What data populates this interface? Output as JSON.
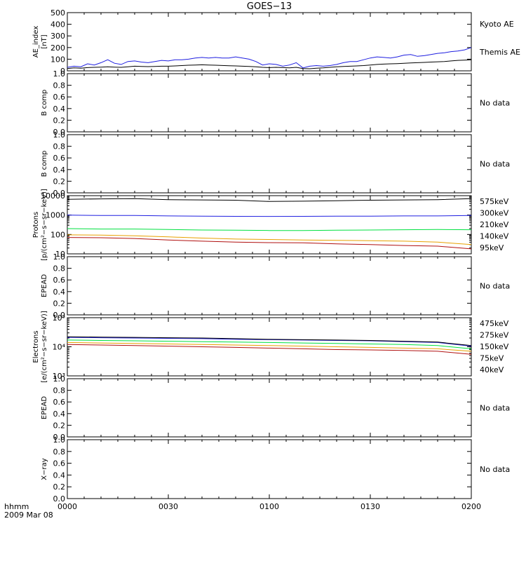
{
  "title": "GOES−13",
  "x_axis": {
    "ticks": [
      "0000",
      "0030",
      "0100",
      "0130",
      "0200"
    ],
    "label_line1": "hhmm",
    "label_line2": "2009 Mar 08"
  },
  "colors": {
    "black": "#000000",
    "blue": "#1f1fe0",
    "red": "#b01010",
    "orange": "#e8a000",
    "green": "#00e040"
  },
  "chart_data": [
    {
      "type": "line",
      "id": "ae",
      "ylabel": [
        "AE_index",
        "[nT]"
      ],
      "ylim": [
        0,
        500
      ],
      "scale": "linear",
      "yticks": [
        "0",
        "100",
        "200",
        "300",
        "400",
        "500"
      ],
      "x": [
        0,
        2,
        4,
        6,
        8,
        10,
        12,
        14,
        16,
        18,
        20,
        22,
        24,
        26,
        28,
        30,
        32,
        34,
        36,
        38,
        40,
        42,
        44,
        46,
        48,
        50,
        52,
        54,
        56,
        58,
        60,
        62,
        64,
        66,
        68,
        70,
        72,
        74,
        76,
        78,
        80,
        82,
        84,
        86,
        88,
        90,
        92,
        94,
        96,
        98,
        100,
        102,
        104,
        106,
        108,
        110,
        112,
        114,
        116,
        118,
        120
      ],
      "series": [
        {
          "name": "Kyoto AE",
          "color": "blue",
          "values": [
            30,
            40,
            35,
            60,
            50,
            70,
            95,
            65,
            55,
            80,
            85,
            75,
            70,
            80,
            90,
            85,
            95,
            95,
            100,
            110,
            115,
            110,
            115,
            110,
            110,
            120,
            110,
            100,
            80,
            50,
            60,
            55,
            40,
            50,
            70,
            25,
            40,
            45,
            40,
            45,
            55,
            70,
            80,
            80,
            95,
            110,
            120,
            115,
            110,
            120,
            135,
            140,
            125,
            130,
            140,
            150,
            155,
            165,
            170,
            180,
            200
          ]
        },
        {
          "name": "Themis AE",
          "color": "black",
          "values": [
            20,
            25,
            22,
            28,
            30,
            32,
            35,
            32,
            30,
            35,
            40,
            38,
            36,
            38,
            40,
            40,
            42,
            45,
            48,
            50,
            52,
            50,
            48,
            46,
            44,
            42,
            40,
            38,
            35,
            30,
            28,
            30,
            28,
            26,
            30,
            20,
            18,
            22,
            25,
            30,
            35,
            38,
            40,
            42,
            45,
            50,
            55,
            58,
            60,
            62,
            65,
            68,
            70,
            72,
            75,
            78,
            80,
            85,
            90,
            92,
            95
          ]
        }
      ]
    },
    {
      "type": "line",
      "id": "bcomp1",
      "ylabel": [
        "B comp"
      ],
      "ylim": [
        0,
        1
      ],
      "scale": "linear",
      "yticks": [
        "0.0",
        "0.2",
        "0.4",
        "0.6",
        "0.8",
        "1.0"
      ],
      "no_data": "No data",
      "series": []
    },
    {
      "type": "line",
      "id": "bcomp2",
      "ylabel": [
        "B comp"
      ],
      "ylim": [
        0,
        1
      ],
      "scale": "linear",
      "yticks": [
        "0.0",
        "0.2",
        "0.4",
        "0.6",
        "0.8",
        "1.0"
      ],
      "no_data": "No data",
      "series": []
    },
    {
      "type": "line",
      "id": "protons",
      "ylabel": [
        "Protons",
        "[p/(cm²−s−sr−keV)]"
      ],
      "ylim": [
        10,
        10000
      ],
      "scale": "log",
      "yticks": [
        "10",
        "100",
        "1000",
        "10000"
      ],
      "x": [
        0,
        10,
        20,
        30,
        40,
        50,
        60,
        70,
        80,
        90,
        100,
        110,
        120
      ],
      "series": [
        {
          "name": "575keV",
          "color": "red",
          "values": [
            70,
            68,
            62,
            52,
            45,
            40,
            38,
            37,
            33,
            30,
            27,
            25,
            18
          ]
        },
        {
          "name": "300keV",
          "color": "orange",
          "values": [
            95,
            92,
            85,
            75,
            65,
            58,
            55,
            52,
            50,
            48,
            45,
            40,
            30
          ]
        },
        {
          "name": "210keV",
          "color": "green",
          "values": [
            200,
            190,
            190,
            180,
            170,
            165,
            160,
            160,
            165,
            170,
            175,
            180,
            175
          ]
        },
        {
          "name": "140keV",
          "color": "blue",
          "values": [
            1000,
            950,
            950,
            900,
            880,
            860,
            850,
            860,
            870,
            880,
            900,
            900,
            950
          ]
        },
        {
          "name": "95keV",
          "color": "black",
          "values": [
            6500,
            6800,
            7000,
            6200,
            6000,
            5800,
            5000,
            5200,
            5500,
            5800,
            6000,
            6200,
            7000
          ]
        }
      ]
    },
    {
      "type": "line",
      "id": "epead1",
      "ylabel": [
        "EPEAD"
      ],
      "ylim": [
        0,
        1
      ],
      "scale": "linear",
      "yticks": [
        "0.0",
        "0.2",
        "0.4",
        "0.6",
        "0.8",
        "1.0"
      ],
      "no_data": "No data",
      "series": []
    },
    {
      "type": "line",
      "id": "electrons",
      "ylabel": [
        "Electrons",
        "[e/(cm²−s−sr−keV)]"
      ],
      "ylim": [
        1000,
        100000
      ],
      "scale": "log",
      "yticks": [
        "10³",
        "10⁴",
        "10⁵"
      ],
      "x": [
        0,
        10,
        20,
        30,
        40,
        50,
        60,
        70,
        80,
        90,
        100,
        110,
        120
      ],
      "series": [
        {
          "name": "475keV",
          "color": "red",
          "values": [
            12000,
            11500,
            11000,
            10500,
            10000,
            9500,
            9000,
            8500,
            8000,
            7800,
            7500,
            7000,
            5500
          ]
        },
        {
          "name": "275keV",
          "color": "orange",
          "values": [
            14000,
            13500,
            13000,
            12500,
            12000,
            11500,
            11000,
            10500,
            10000,
            9500,
            9000,
            8500,
            7000
          ]
        },
        {
          "name": "150keV",
          "color": "green",
          "values": [
            17000,
            16500,
            16000,
            15500,
            15000,
            14500,
            14000,
            13500,
            13000,
            12500,
            12000,
            11000,
            8500
          ]
        },
        {
          "name": "75keV",
          "color": "blue",
          "values": [
            21000,
            20500,
            20000,
            19500,
            19000,
            18000,
            17500,
            17000,
            16500,
            16000,
            15000,
            14000,
            10500
          ]
        },
        {
          "name": "40keV",
          "color": "black",
          "values": [
            22000,
            21500,
            21000,
            20500,
            20000,
            19000,
            18000,
            17500,
            17000,
            16500,
            15500,
            14500,
            11000
          ]
        }
      ]
    },
    {
      "type": "line",
      "id": "epead2",
      "ylabel": [
        "EPEAD"
      ],
      "ylim": [
        0,
        1
      ],
      "scale": "linear",
      "yticks": [
        "0.0",
        "0.2",
        "0.4",
        "0.6",
        "0.8",
        "1.0"
      ],
      "no_data": "No data",
      "series": []
    },
    {
      "type": "line",
      "id": "xray",
      "ylabel": [
        "X−ray"
      ],
      "ylim": [
        0,
        1
      ],
      "scale": "linear",
      "yticks": [
        "0.0",
        "0.2",
        "0.4",
        "0.6",
        "0.8",
        "1.0"
      ],
      "no_data": "No data",
      "series": []
    }
  ]
}
